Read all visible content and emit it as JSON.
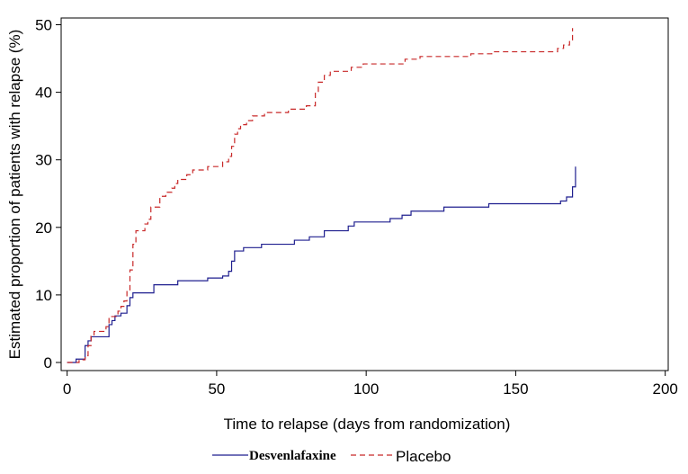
{
  "chart_data": {
    "type": "line",
    "title": "",
    "xlabel": "Time to relapse (days from randomization)",
    "ylabel": "Estimated proportion of patients with relapse (%)",
    "xlim": [
      -2,
      201
    ],
    "ylim": [
      -1.2,
      51
    ],
    "xticks": [
      0,
      50,
      100,
      150,
      200
    ],
    "yticks": [
      0,
      10,
      20,
      30,
      40,
      50
    ],
    "xtick_labels": [
      "0",
      "50",
      "100",
      "150",
      "200"
    ],
    "ytick_labels": [
      "0",
      "10",
      "20",
      "30",
      "40",
      "50"
    ],
    "grid": false,
    "legend": {
      "placement": "bottom",
      "entries": [
        "Desvenlafaxine",
        "Placebo"
      ]
    },
    "series": [
      {
        "name": "Desvenlafaxine",
        "color": "#1f1f8f",
        "dash": "solid",
        "x": [
          0,
          3,
          6,
          7,
          8,
          9,
          14,
          15,
          16,
          18,
          20,
          21,
          22,
          27,
          29,
          35,
          37,
          47,
          52,
          54,
          55,
          56,
          59,
          65,
          76,
          81,
          86,
          94,
          96,
          108,
          112,
          115,
          126,
          141,
          165,
          167,
          169,
          170
        ],
        "y": [
          0,
          0.5,
          2.5,
          3.2,
          3.8,
          3.8,
          5.6,
          6.2,
          6.9,
          7.3,
          8.4,
          9.6,
          10.3,
          10.3,
          11.5,
          11.5,
          12.1,
          12.5,
          12.8,
          13.5,
          15.0,
          16.5,
          17.0,
          17.5,
          18.1,
          18.6,
          19.5,
          20.2,
          20.8,
          21.3,
          21.8,
          22.4,
          23.0,
          23.5,
          23.9,
          24.5,
          26.0,
          29.0
        ],
        "step_end_x": 170
      },
      {
        "name": "Placebo",
        "color": "#c82828",
        "dash": "dashed",
        "x": [
          0,
          4,
          6,
          7,
          8,
          9,
          13,
          14,
          17,
          18,
          19,
          20,
          21,
          22,
          23,
          26,
          27,
          28,
          31,
          33,
          35,
          36,
          37,
          40,
          42,
          47,
          52,
          54,
          55,
          56,
          57,
          58,
          60,
          62,
          66,
          74,
          80,
          83,
          84,
          86,
          88,
          95,
          99,
          113,
          118,
          135,
          142,
          164,
          166,
          168,
          169
        ],
        "y": [
          0,
          0.4,
          1.0,
          2.5,
          3.9,
          4.6,
          5.3,
          6.8,
          7.6,
          8.3,
          9.1,
          10.6,
          13.7,
          17.5,
          19.5,
          20.5,
          21.2,
          23.0,
          24.6,
          25.2,
          25.8,
          26.5,
          27.1,
          27.8,
          28.5,
          29.0,
          29.7,
          30.5,
          32.0,
          33.8,
          34.6,
          35.2,
          35.8,
          36.5,
          37.0,
          37.5,
          38.0,
          40.0,
          41.5,
          42.5,
          43.1,
          43.7,
          44.2,
          44.9,
          45.3,
          45.7,
          46.0,
          46.5,
          47.0,
          47.5,
          49.5
        ],
        "step_end_x": 169
      }
    ]
  }
}
